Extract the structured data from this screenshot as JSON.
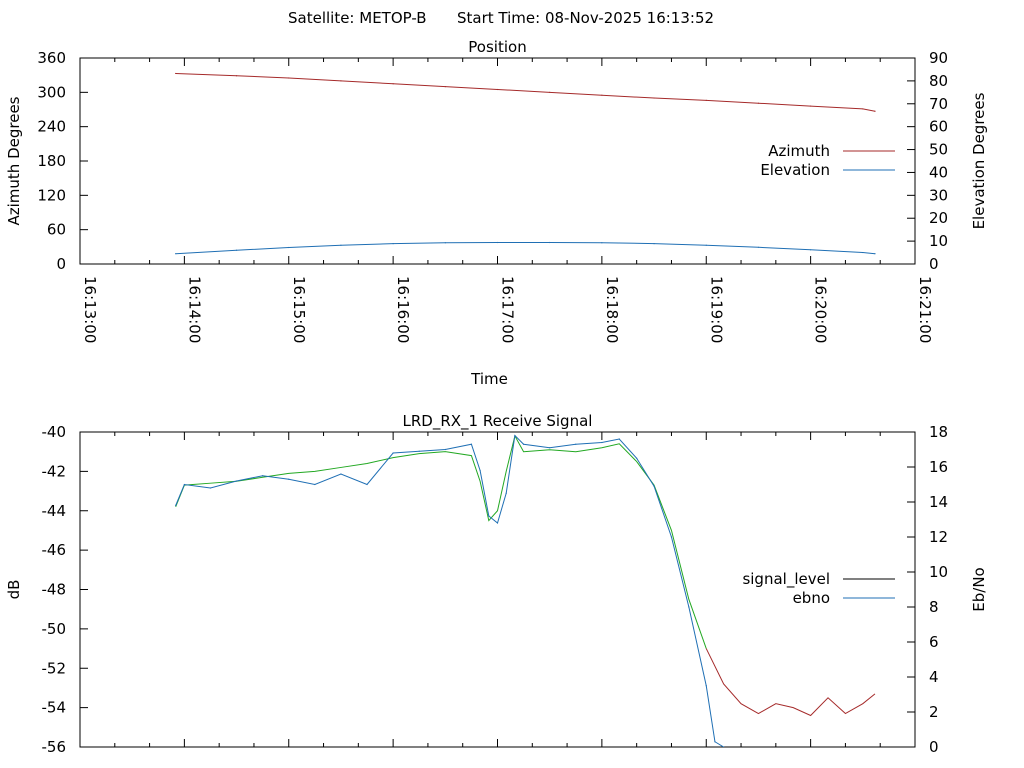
{
  "header": {
    "satellite": "Satellite: METOP-B",
    "start_time": "Start Time: 08-Nov-2025 16:13:52"
  },
  "chart_data": [
    {
      "type": "line",
      "title": "Position",
      "xlabel": "Time",
      "ylabel": "Azimuth Degrees",
      "y2label": "Elevation Degrees",
      "xlim": [
        "16:13:00",
        "16:21:00"
      ],
      "ylim": [
        0,
        360
      ],
      "y2lim": [
        0,
        90
      ],
      "x_tick_labels": [
        "16:13:00",
        "16:14:00",
        "16:15:00",
        "16:16:00",
        "16:17:00",
        "16:18:00",
        "16:19:00",
        "16:20:00",
        "16:21:00"
      ],
      "y_tick_labels": [
        "0",
        "60",
        "120",
        "180",
        "240",
        "300",
        "360"
      ],
      "y2_tick_labels": [
        "0",
        "10",
        "20",
        "30",
        "40",
        "50",
        "60",
        "70",
        "80",
        "90"
      ],
      "legend_position": "right",
      "grid": false,
      "series": [
        {
          "name": "Azimuth",
          "axis": "left",
          "color": "#a52a2a",
          "x": [
            "16:13:55",
            "16:14:30",
            "16:15:00",
            "16:15:30",
            "16:16:00",
            "16:16:30",
            "16:17:00",
            "16:17:30",
            "16:18:00",
            "16:18:30",
            "16:19:00",
            "16:19:30",
            "16:20:00",
            "16:20:30",
            "16:20:37"
          ],
          "y": [
            333,
            329,
            325,
            320,
            315,
            310,
            305,
            300,
            295,
            290,
            286,
            281,
            276,
            271,
            267
          ]
        },
        {
          "name": "Elevation",
          "axis": "right",
          "color": "#1f6fb4",
          "x": [
            "16:13:55",
            "16:14:30",
            "16:15:00",
            "16:15:30",
            "16:16:00",
            "16:16:30",
            "16:17:00",
            "16:17:30",
            "16:18:00",
            "16:18:30",
            "16:19:00",
            "16:19:30",
            "16:20:00",
            "16:20:30",
            "16:20:37"
          ],
          "y": [
            4.5,
            6,
            7.2,
            8.2,
            8.9,
            9.3,
            9.4,
            9.4,
            9.3,
            8.9,
            8.2,
            7.3,
            6.2,
            5,
            4.5
          ]
        }
      ]
    },
    {
      "type": "line",
      "title": "LRD_RX_1 Receive Signal",
      "ylabel": "dB",
      "y2label": "Eb/No",
      "xlim": [
        "16:13:00",
        "16:21:00"
      ],
      "ylim": [
        -56,
        -40
      ],
      "y2lim": [
        0,
        18
      ],
      "y_tick_labels": [
        "-56",
        "-54",
        "-52",
        "-50",
        "-48",
        "-46",
        "-44",
        "-42",
        "-40"
      ],
      "y2_tick_labels": [
        "0",
        "2",
        "4",
        "6",
        "8",
        "10",
        "12",
        "14",
        "16",
        "18"
      ],
      "legend_position": "right",
      "grid": false,
      "series": [
        {
          "name": "signal_level",
          "axis": "left",
          "color": "#000000",
          "segment_colors": {
            "locked": "#22a822",
            "unlocked": "#a52a2a"
          },
          "locked_until": "16:19:00",
          "x": [
            "16:13:55",
            "16:14:00",
            "16:14:15",
            "16:14:30",
            "16:14:45",
            "16:15:00",
            "16:15:15",
            "16:15:30",
            "16:15:45",
            "16:16:00",
            "16:16:15",
            "16:16:30",
            "16:16:45",
            "16:16:50",
            "16:16:55",
            "16:17:00",
            "16:17:05",
            "16:17:10",
            "16:17:15",
            "16:17:30",
            "16:17:45",
            "16:18:00",
            "16:18:10",
            "16:18:20",
            "16:18:30",
            "16:18:40",
            "16:18:50",
            "16:19:00",
            "16:19:10",
            "16:19:20",
            "16:19:30",
            "16:19:40",
            "16:19:50",
            "16:20:00",
            "16:20:10",
            "16:20:20",
            "16:20:30",
            "16:20:37"
          ],
          "y": [
            -43.8,
            -42.7,
            -42.6,
            -42.5,
            -42.3,
            -42.1,
            -42.0,
            -41.8,
            -41.6,
            -41.3,
            -41.1,
            -41.0,
            -41.2,
            -42.5,
            -44.5,
            -44.0,
            -42.0,
            -40.2,
            -41.0,
            -40.9,
            -41.0,
            -40.8,
            -40.6,
            -41.5,
            -42.7,
            -45.0,
            -48.5,
            -51.0,
            -52.8,
            -53.8,
            -54.3,
            -53.8,
            -54.0,
            -54.4,
            -53.5,
            -54.3,
            -53.8,
            -53.3
          ]
        },
        {
          "name": "ebno",
          "axis": "right",
          "color": "#1f6fb4",
          "x": [
            "16:13:55",
            "16:14:00",
            "16:14:15",
            "16:14:30",
            "16:14:45",
            "16:15:00",
            "16:15:15",
            "16:15:30",
            "16:15:45",
            "16:16:00",
            "16:16:15",
            "16:16:30",
            "16:16:45",
            "16:16:50",
            "16:16:55",
            "16:17:00",
            "16:17:05",
            "16:17:10",
            "16:17:15",
            "16:17:30",
            "16:17:45",
            "16:18:00",
            "16:18:10",
            "16:18:20",
            "16:18:30",
            "16:18:40",
            "16:18:50",
            "16:19:00",
            "16:19:05",
            "16:19:10"
          ],
          "y": [
            13.8,
            15.0,
            14.8,
            15.2,
            15.5,
            15.3,
            15.0,
            15.6,
            15.0,
            16.8,
            16.9,
            17.0,
            17.3,
            15.8,
            13.2,
            12.8,
            14.5,
            17.8,
            17.3,
            17.1,
            17.3,
            17.4,
            17.6,
            16.5,
            14.9,
            12.0,
            8.0,
            3.5,
            0.3,
            0.0
          ]
        }
      ]
    }
  ]
}
